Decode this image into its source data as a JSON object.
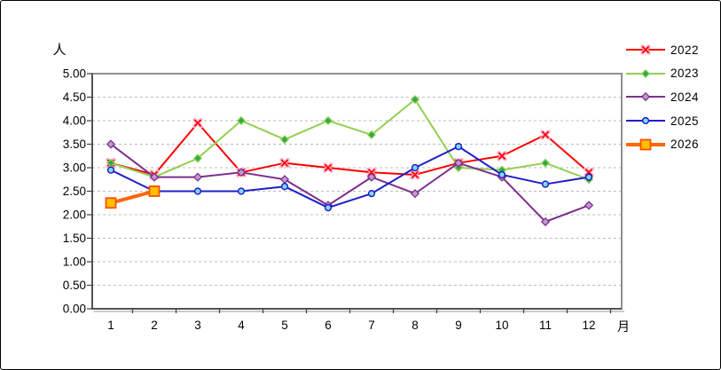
{
  "frame": {
    "background": "#FFFFFF",
    "border_color": "#000000"
  },
  "colors": {
    "gridline": "#BBBBBB",
    "plot_border": "#909090",
    "axis": "#404040",
    "axis_shadow": "#ABABAB",
    "text": "#000000"
  },
  "chart_data": {
    "type": "line",
    "title": "",
    "y_axis_title": "人",
    "x_axis_title": "月",
    "x": [
      1,
      2,
      3,
      4,
      5,
      6,
      7,
      8,
      9,
      10,
      11,
      12
    ],
    "x_labels": [
      "1",
      "2",
      "3",
      "4",
      "5",
      "6",
      "7",
      "8",
      "9",
      "10",
      "11",
      "12"
    ],
    "ylim": [
      0,
      5
    ],
    "y_tick_step": 0.5,
    "y_tick_labels": [
      "5.00",
      "4.50",
      "4.00",
      "3.50",
      "3.00",
      "2.50",
      "2.00",
      "1.50",
      "1.00",
      "0.50",
      "0.00"
    ],
    "grid": true,
    "legend_position": "right",
    "series": [
      {
        "name": "2022",
        "color": "#FF0000",
        "marker": "x",
        "marker_halo": "#FFB0C8",
        "line_width": 2,
        "values": [
          3.1,
          2.85,
          3.95,
          2.9,
          3.1,
          3.0,
          2.9,
          2.85,
          3.1,
          3.25,
          3.7,
          2.9
        ]
      },
      {
        "name": "2023",
        "color": "#92D050",
        "marker": "diamond",
        "marker_fill": "#2FA94C",
        "marker_stroke": "#92D050",
        "line_width": 2,
        "values": [
          3.1,
          2.8,
          3.2,
          4.0,
          3.6,
          4.0,
          3.7,
          4.45,
          3.0,
          2.95,
          3.1,
          2.75
        ]
      },
      {
        "name": "2024",
        "color": "#7D2F8C",
        "marker": "diamond",
        "marker_fill": "#BF9CCF",
        "marker_stroke": "#7D2F8C",
        "line_width": 2,
        "values": [
          3.5,
          2.8,
          2.8,
          2.9,
          2.75,
          2.2,
          2.8,
          2.45,
          3.1,
          2.8,
          1.85,
          2.2
        ]
      },
      {
        "name": "2025",
        "color": "#1F1FCC",
        "marker": "circle",
        "marker_fill": "#7FDBF0",
        "marker_stroke": "#1F1FCC",
        "line_width": 2,
        "values": [
          2.95,
          2.5,
          2.5,
          2.5,
          2.6,
          2.15,
          2.45,
          3.0,
          3.45,
          2.85,
          2.65,
          2.8
        ]
      },
      {
        "name": "2026",
        "color": "#FF6600",
        "marker": "square",
        "marker_fill": "#FFC000",
        "marker_stroke": "#FF4D00",
        "line_width": 4,
        "values": [
          2.25,
          2.5,
          null,
          null,
          null,
          null,
          null,
          null,
          null,
          null,
          null,
          null
        ]
      }
    ]
  }
}
